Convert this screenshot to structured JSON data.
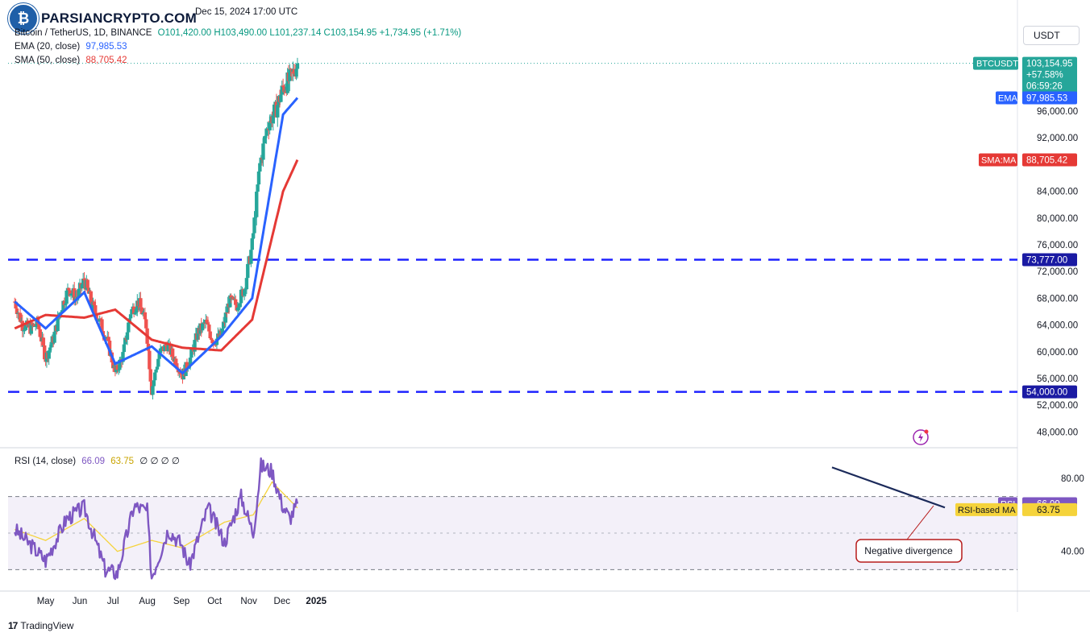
{
  "watermark": {
    "brand": "PARSIANCRYPTO.COM",
    "date": "Dec 15, 2024 17:00 UTC"
  },
  "header": {
    "symbol": "Bitcoin / TetherUS, 1D, BINANCE",
    "ohlc": "O101,420.00  H103,490.00  L101,237.14  C103,154.95  +1,734.95 (+1.71%)",
    "ema_label": "EMA (20, close)",
    "ema_value": "97,985.53",
    "sma_label": "SMA (50, close)",
    "sma_value": "88,705.42",
    "rsi_label": "RSI (14, close)",
    "rsi_value": "66.09",
    "rsi_ma_value": "63.75",
    "rsi_extra": "∅  ∅  ∅  ∅"
  },
  "currency": "USDT",
  "footer": {
    "brand": "TradingView"
  },
  "colors": {
    "up": "#26a69a",
    "down": "#ef5350",
    "ema": "#2962ff",
    "sma": "#e53935",
    "rsi": "#7e57c2",
    "rsi_ma": "#f5d33b",
    "level": "#1e22ff",
    "divergence": "#1b2a5a",
    "note_border": "#b71c1c"
  },
  "chart_data": [
    {
      "type": "line",
      "title": "",
      "ylim": [
        46000,
        106000
      ],
      "y_ticks": [
        "48,000.00",
        "52,000.00",
        "56,000.00",
        "60,000.00",
        "64,000.00",
        "68,000.00",
        "72,000.00",
        "76,000.00",
        "80,000.00",
        "84,000.00",
        "92,000.00",
        "96,000.00"
      ],
      "x_ticks": [
        "May",
        "Jun",
        "Jul",
        "Aug",
        "Sep",
        "Oct",
        "Nov",
        "Dec",
        "2025"
      ],
      "levels": [
        {
          "value": 73777,
          "label": "73,777.00"
        },
        {
          "value": 54000,
          "label": "54,000.00"
        }
      ],
      "tags": [
        {
          "name": "BTCUSDT",
          "value": "103,154.95",
          "lines": [
            "103,154.95",
            "+57.58%",
            "06:59:26"
          ]
        },
        {
          "name": "EMA",
          "value": "97,985.53"
        },
        {
          "name": "SMA:MA",
          "value": "88,705.42"
        }
      ],
      "series": [
        {
          "name": "BTCUSDT",
          "kind": "candlestick",
          "x": [
            "2024-04-03",
            "2024-04-10",
            "2024-04-17",
            "2024-04-24",
            "2024-05-01",
            "2024-05-08",
            "2024-05-15",
            "2024-05-22",
            "2024-05-29",
            "2024-06-05",
            "2024-06-12",
            "2024-06-19",
            "2024-06-26",
            "2024-07-03",
            "2024-07-10",
            "2024-07-17",
            "2024-07-24",
            "2024-07-31",
            "2024-08-05",
            "2024-08-12",
            "2024-08-19",
            "2024-08-26",
            "2024-09-02",
            "2024-09-09",
            "2024-09-16",
            "2024-09-23",
            "2024-09-30",
            "2024-10-07",
            "2024-10-14",
            "2024-10-21",
            "2024-10-28",
            "2024-11-04",
            "2024-11-11",
            "2024-11-18",
            "2024-11-25",
            "2024-12-02",
            "2024-12-09",
            "2024-12-15"
          ],
          "values": [
            67500,
            64000,
            63500,
            64200,
            59000,
            62000,
            66500,
            69500,
            68000,
            70800,
            67000,
            64500,
            61500,
            56800,
            59500,
            66000,
            67500,
            64000,
            54200,
            59800,
            61000,
            58800,
            56500,
            59000,
            63000,
            64300,
            61500,
            62500,
            67500,
            67000,
            69500,
            76000,
            88000,
            94000,
            96000,
            99500,
            101000,
            103154.95
          ]
        },
        {
          "name": "EMA",
          "x": [
            "2024-04-03",
            "2024-05-01",
            "2024-06-05",
            "2024-07-03",
            "2024-08-05",
            "2024-09-02",
            "2024-10-07",
            "2024-11-04",
            "2024-12-02",
            "2024-12-15"
          ],
          "values": [
            67500,
            63500,
            68900,
            58200,
            60800,
            56800,
            62300,
            68000,
            95500,
            97985.53
          ]
        },
        {
          "name": "SMA:MA",
          "x": [
            "2024-04-03",
            "2024-05-01",
            "2024-06-05",
            "2024-07-03",
            "2024-08-05",
            "2024-09-02",
            "2024-10-07",
            "2024-11-04",
            "2024-12-02",
            "2024-12-15"
          ],
          "values": [
            63500,
            65500,
            65100,
            66300,
            61800,
            60600,
            60200,
            64800,
            84000,
            88705.42
          ]
        }
      ]
    },
    {
      "type": "line",
      "title": "",
      "ylim": [
        20,
        95
      ],
      "y_ticks": [
        "80.00",
        "40.00"
      ],
      "bands": [
        70,
        30
      ],
      "series": [
        {
          "name": "RSI",
          "value_label": "66.09",
          "x": [
            "2024-04-03",
            "2024-04-20",
            "2024-05-01",
            "2024-05-20",
            "2024-06-05",
            "2024-06-24",
            "2024-07-05",
            "2024-07-20",
            "2024-08-01",
            "2024-08-05",
            "2024-08-20",
            "2024-09-01",
            "2024-09-08",
            "2024-09-25",
            "2024-10-10",
            "2024-10-25",
            "2024-11-05",
            "2024-11-12",
            "2024-11-22",
            "2024-12-01",
            "2024-12-08",
            "2024-12-15"
          ],
          "values": [
            52,
            42,
            35,
            58,
            64,
            30,
            28,
            65,
            62,
            26,
            52,
            44,
            32,
            64,
            45,
            70,
            50,
            87,
            84,
            66,
            58,
            66.09
          ]
        },
        {
          "name": "RSI-based MA",
          "value_label": "63.75",
          "x": [
            "2024-04-03",
            "2024-05-01",
            "2024-06-05",
            "2024-07-05",
            "2024-08-05",
            "2024-09-01",
            "2024-10-10",
            "2024-11-05",
            "2024-11-22",
            "2024-12-15"
          ],
          "values": [
            52,
            46,
            58,
            40,
            46,
            42,
            56,
            60,
            78,
            63.75
          ]
        }
      ],
      "annotation": "Negative divergence"
    }
  ]
}
